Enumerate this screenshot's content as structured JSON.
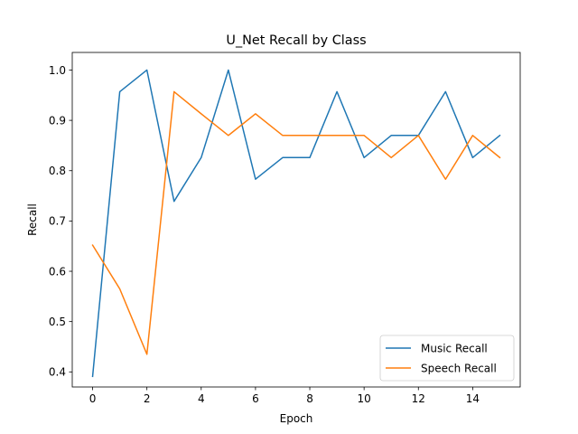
{
  "chart_data": {
    "type": "line",
    "title": "U_Net Recall by Class",
    "xlabel": "Epoch",
    "ylabel": "Recall",
    "x": [
      0,
      1,
      2,
      3,
      4,
      5,
      6,
      7,
      8,
      9,
      10,
      11,
      12,
      13,
      14,
      15
    ],
    "xlim": [
      -0.75,
      15.75
    ],
    "ylim": [
      0.37,
      1.035
    ],
    "xticks": [
      0,
      2,
      4,
      6,
      8,
      10,
      12,
      14
    ],
    "yticks": [
      0.4,
      0.5,
      0.6,
      0.7,
      0.8,
      0.9,
      1.0
    ],
    "ytick_labels": [
      "0.4",
      "0.5",
      "0.6",
      "0.7",
      "0.8",
      "0.9",
      "1.0"
    ],
    "grid": false,
    "legend_position": "lower-right",
    "series": [
      {
        "name": "Music Recall",
        "color": "#1f77b4",
        "values": [
          0.391,
          0.957,
          1.0,
          0.739,
          0.826,
          1.0,
          0.783,
          0.826,
          0.826,
          0.957,
          0.826,
          0.87,
          0.87,
          0.957,
          0.826,
          0.87
        ]
      },
      {
        "name": "Speech Recall",
        "color": "#ff7f0e",
        "values": [
          0.652,
          0.565,
          0.435,
          0.957,
          0.913,
          0.87,
          0.913,
          0.87,
          0.87,
          0.87,
          0.87,
          0.826,
          0.87,
          0.783,
          0.87,
          0.826
        ]
      }
    ]
  }
}
